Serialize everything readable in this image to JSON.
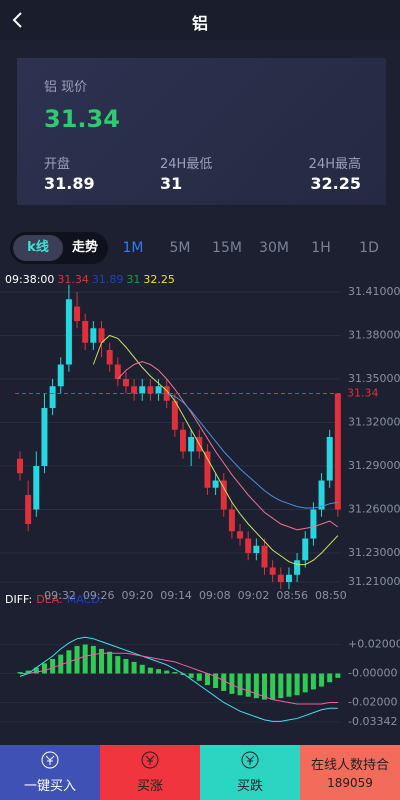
{
  "header": {
    "title": "铝"
  },
  "quote": {
    "label": "铝 现价",
    "price": 31.34,
    "stats": [
      {
        "label": "开盘",
        "value": 31.89
      },
      {
        "label": "24H最低",
        "value": 31
      },
      {
        "label": "24H最高",
        "value": 32.25
      }
    ]
  },
  "tabs": {
    "mode": [
      "k线",
      "走势"
    ],
    "periods": [
      "1M",
      "5M",
      "15M",
      "30M",
      "1H",
      "1D"
    ]
  },
  "kline": {
    "type": "candlestick",
    "info": {
      "time": "09:38:00",
      "values": [
        {
          "text": "31.34",
          "color": "#e0303c"
        },
        {
          "text": "31.89",
          "color": "#2040c0"
        },
        {
          "text": "31",
          "color": "#1f9a3a"
        },
        {
          "text": "32.25",
          "color": "#f0e020"
        }
      ]
    },
    "ylim": [
      31.2,
      31.42
    ],
    "yticks": [
      {
        "value": 31.41,
        "label": "31.41000"
      },
      {
        "value": 31.38,
        "label": "31.38000"
      },
      {
        "value": 31.35,
        "label": "31.35000"
      },
      {
        "value": 31.32,
        "label": "31.32000"
      },
      {
        "value": 31.29,
        "label": "31.29000"
      },
      {
        "value": 31.26,
        "label": "31.26000"
      },
      {
        "value": 31.23,
        "label": "31.23000"
      },
      {
        "value": 31.21,
        "label": "31.21000"
      }
    ],
    "last_price": 31.34,
    "times": [
      "09:32",
      "09:26",
      "09:20",
      "09:14",
      "09:08",
      "09:02",
      "08:56",
      "08:50"
    ],
    "up_color": "#27d6df",
    "down_color": "#e0303c",
    "candles": [
      [
        31.295,
        31.285,
        31.3,
        31.28
      ],
      [
        31.27,
        31.25,
        31.28,
        31.245
      ],
      [
        31.26,
        31.29,
        31.3,
        31.255
      ],
      [
        31.29,
        31.33,
        31.34,
        31.285
      ],
      [
        31.33,
        31.345,
        31.35,
        31.325
      ],
      [
        31.345,
        31.36,
        31.365,
        31.34
      ],
      [
        31.36,
        31.405,
        31.415,
        31.355
      ],
      [
        31.4,
        31.39,
        31.41,
        31.385
      ],
      [
        31.39,
        31.375,
        31.395,
        31.37
      ],
      [
        31.375,
        31.385,
        31.39,
        31.37
      ],
      [
        31.385,
        31.375,
        31.39,
        31.365
      ],
      [
        31.37,
        31.36,
        31.375,
        31.355
      ],
      [
        31.36,
        31.35,
        31.365,
        31.345
      ],
      [
        31.35,
        31.345,
        31.355,
        31.34
      ],
      [
        31.345,
        31.34,
        31.35,
        31.335
      ],
      [
        31.34,
        31.345,
        31.35,
        31.335
      ],
      [
        31.345,
        31.34,
        31.35,
        31.335
      ],
      [
        31.34,
        31.345,
        31.35,
        31.335
      ],
      [
        31.345,
        31.335,
        31.35,
        31.33
      ],
      [
        31.335,
        31.315,
        31.34,
        31.31
      ],
      [
        31.315,
        31.3,
        31.32,
        31.295
      ],
      [
        31.3,
        31.31,
        31.315,
        31.29
      ],
      [
        31.31,
        31.3,
        31.315,
        31.295
      ],
      [
        31.3,
        31.275,
        31.305,
        31.27
      ],
      [
        31.275,
        31.28,
        31.285,
        31.27
      ],
      [
        31.28,
        31.26,
        31.285,
        31.255
      ],
      [
        31.26,
        31.245,
        31.265,
        31.24
      ],
      [
        31.245,
        31.24,
        31.25,
        31.235
      ],
      [
        31.24,
        31.23,
        31.245,
        31.225
      ],
      [
        31.23,
        31.235,
        31.24,
        31.225
      ],
      [
        31.235,
        31.22,
        31.24,
        31.215
      ],
      [
        31.22,
        31.215,
        31.225,
        31.21
      ],
      [
        31.215,
        31.21,
        31.22,
        31.205
      ],
      [
        31.21,
        31.215,
        31.22,
        31.205
      ],
      [
        31.215,
        31.225,
        31.23,
        31.21
      ],
      [
        31.225,
        31.24,
        31.245,
        31.22
      ],
      [
        31.24,
        31.26,
        31.265,
        31.235
      ],
      [
        31.26,
        31.28,
        31.285,
        31.255
      ],
      [
        31.28,
        31.31,
        31.315,
        31.275
      ],
      [
        31.34,
        31.26,
        31.34,
        31.255
      ]
    ],
    "averages": [
      {
        "color": "#c8e060",
        "values": [
          null,
          null,
          null,
          null,
          null,
          null,
          null,
          null,
          null,
          31.36,
          31.375,
          31.38,
          31.378,
          31.372,
          31.365,
          31.358,
          31.352,
          31.347,
          31.342,
          31.335,
          31.325,
          31.315,
          31.305,
          31.295,
          31.285,
          31.275,
          31.265,
          31.257,
          31.25,
          31.244,
          31.238,
          31.232,
          31.228,
          31.224,
          31.222,
          31.222,
          31.225,
          31.23,
          31.236,
          31.242
        ]
      },
      {
        "color": "#f07090",
        "values": [
          null,
          null,
          null,
          null,
          null,
          null,
          null,
          null,
          null,
          null,
          null,
          null,
          31.35,
          31.356,
          31.36,
          31.362,
          31.36,
          31.356,
          31.35,
          31.343,
          31.335,
          31.327,
          31.318,
          31.309,
          31.3,
          31.292,
          31.284,
          31.277,
          31.27,
          31.264,
          31.258,
          31.254,
          31.25,
          31.248,
          31.246,
          31.247,
          31.248,
          31.25,
          31.252,
          31.248
        ]
      },
      {
        "color": "#4a90e0",
        "values": [
          null,
          null,
          null,
          null,
          null,
          null,
          null,
          null,
          null,
          null,
          null,
          null,
          null,
          null,
          null,
          null,
          null,
          null,
          31.34,
          31.338,
          31.334,
          31.328,
          31.321,
          31.314,
          31.307,
          31.3,
          31.294,
          31.288,
          31.283,
          31.278,
          31.273,
          31.269,
          31.266,
          31.264,
          31.262,
          31.261,
          31.261,
          31.262,
          31.264,
          31.265
        ]
      }
    ]
  },
  "macd": {
    "labels": [
      {
        "text": "DIFF:",
        "color": "#ffffff"
      },
      {
        "text": "DEA:",
        "color": "#e0303c"
      },
      {
        "text": "MACD:",
        "color": "#2040c0"
      }
    ],
    "ylim": [
      -0.035,
      0.03
    ],
    "yticks": [
      {
        "value": 0.02,
        "label": "+0.02000"
      },
      {
        "value": 0,
        "label": "-0.00000"
      },
      {
        "value": -0.02,
        "label": "-0.02000"
      },
      {
        "value": -0.03342,
        "label": "-0.03342"
      }
    ],
    "hist_color": "#2ecc55",
    "hist": [
      0.001,
      0.002,
      0.004,
      0.007,
      0.01,
      0.013,
      0.016,
      0.019,
      0.02,
      0.019,
      0.017,
      0.015,
      0.012,
      0.01,
      0.008,
      0.006,
      0.004,
      0.003,
      0.002,
      0.001,
      -0.001,
      -0.003,
      -0.005,
      -0.008,
      -0.01,
      -0.012,
      -0.014,
      -0.015,
      -0.016,
      -0.017,
      -0.018,
      -0.018,
      -0.017,
      -0.016,
      -0.015,
      -0.013,
      -0.011,
      -0.009,
      -0.006,
      -0.003
    ],
    "lines": [
      {
        "color": "#40e0e8",
        "values": [
          -0.002,
          0,
          0.004,
          0.008,
          0.012,
          0.017,
          0.021,
          0.024,
          0.025,
          0.024,
          0.022,
          0.02,
          0.018,
          0.016,
          0.014,
          0.012,
          0.01,
          0.008,
          0.006,
          0.003,
          0.0,
          -0.004,
          -0.008,
          -0.012,
          -0.016,
          -0.02,
          -0.023,
          -0.026,
          -0.028,
          -0.03,
          -0.032,
          -0.033,
          -0.033,
          -0.032,
          -0.031,
          -0.029,
          -0.027,
          -0.025,
          -0.024,
          -0.024
        ]
      },
      {
        "color": "#f060a0",
        "values": [
          0,
          0,
          0.001,
          0.002,
          0.004,
          0.006,
          0.008,
          0.01,
          0.012,
          0.013,
          0.014,
          0.014,
          0.014,
          0.014,
          0.013,
          0.012,
          0.011,
          0.01,
          0.009,
          0.008,
          0.006,
          0.004,
          0.002,
          0,
          -0.002,
          -0.005,
          -0.008,
          -0.01,
          -0.012,
          -0.014,
          -0.016,
          -0.018,
          -0.019,
          -0.02,
          -0.021,
          -0.021,
          -0.021,
          -0.021,
          -0.02,
          -0.02
        ]
      }
    ]
  },
  "actions": [
    {
      "label": "一键买入",
      "color": "#3f51b5"
    },
    {
      "label": "买涨",
      "color": "#f1353f"
    },
    {
      "label": "买跌",
      "color": "#2bd5c2"
    },
    {
      "label": "在线人数持合",
      "count": 189059,
      "color": "#f26b5b"
    }
  ]
}
